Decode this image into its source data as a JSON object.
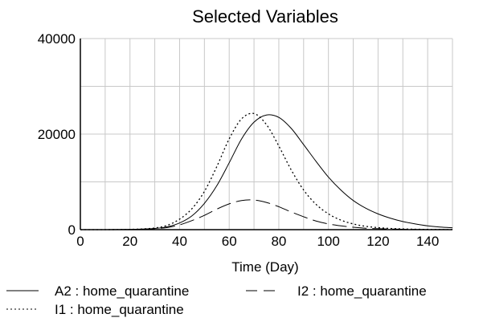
{
  "chart_data": {
    "type": "line",
    "title": "Selected Variables",
    "xlabel": "Time (Day)",
    "ylabel": "",
    "xlim": [
      0,
      150
    ],
    "ylim": [
      0,
      40000
    ],
    "xticks": [
      0,
      20,
      40,
      60,
      80,
      100,
      120,
      140
    ],
    "yticks": [
      0,
      20000,
      40000
    ],
    "grid": true,
    "legend_position": "bottom",
    "x": [
      0,
      10,
      20,
      25,
      30,
      35,
      40,
      45,
      50,
      55,
      60,
      65,
      70,
      75,
      80,
      85,
      90,
      95,
      100,
      105,
      110,
      115,
      120,
      125,
      130,
      135,
      140,
      145,
      150
    ],
    "series": [
      {
        "name": "A2 : home_quarantine",
        "style": "solid",
        "values": [
          0,
          0,
          50,
          120,
          250,
          600,
          1400,
          2900,
          5500,
          9200,
          14000,
          19000,
          22500,
          24000,
          23500,
          21200,
          17800,
          14300,
          11000,
          8300,
          6100,
          4500,
          3300,
          2400,
          1700,
          1200,
          800,
          550,
          400
        ]
      },
      {
        "name": "I2 : home_quarantine",
        "style": "dashed",
        "values": [
          0,
          0,
          40,
          80,
          200,
          450,
          1000,
          1900,
          3000,
          4300,
          5400,
          6100,
          6200,
          5700,
          4800,
          3700,
          2700,
          1800,
          1200,
          800,
          500,
          300,
          200,
          130,
          80,
          50,
          30,
          20,
          10
        ]
      },
      {
        "name": "I1 : home_quarantine",
        "style": "dotted",
        "values": [
          0,
          0,
          60,
          150,
          350,
          900,
          2200,
          4400,
          8000,
          13200,
          19000,
          23200,
          24300,
          22000,
          17500,
          12500,
          8300,
          5300,
          3300,
          2000,
          1200,
          700,
          420,
          250,
          150,
          90,
          50,
          30,
          20
        ]
      }
    ]
  }
}
